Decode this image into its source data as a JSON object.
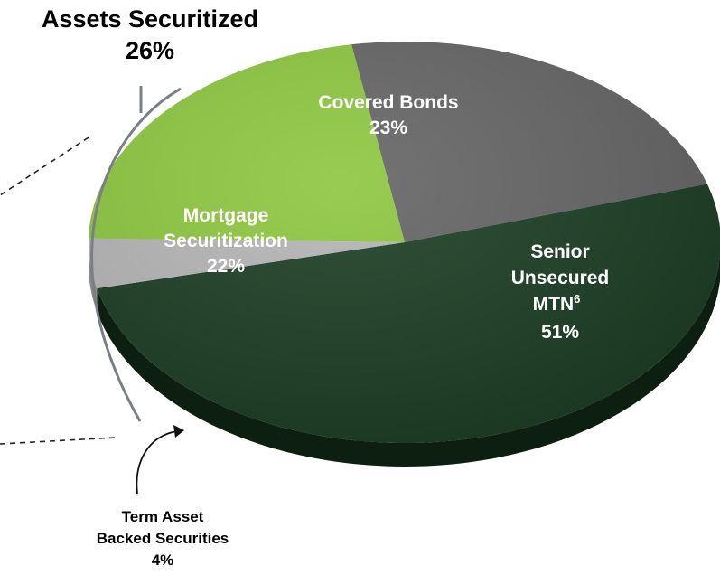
{
  "chart_data": {
    "type": "pie",
    "categories": [
      "Covered Bonds",
      "Senior Unsecured MTN6",
      "Term Asset Backed Securities",
      "Mortgage Securitization"
    ],
    "values": [
      23,
      51,
      4,
      22
    ],
    "unit": "%",
    "slices": [
      {
        "name_lines": [
          "Covered Bonds"
        ],
        "value_label": "23%",
        "value": 23,
        "color": "#646464",
        "side_color": "#3c3c3c"
      },
      {
        "name_lines": [
          "Senior",
          "Unsecured"
        ],
        "mtn_text": "MTN",
        "mtn_sup": "6",
        "value_label": "51%",
        "value": 51,
        "color": "#1b3d23",
        "side_color": "#0c1f10"
      },
      {
        "name_lines": [
          "Term Asset",
          "Backed Securities"
        ],
        "value_label": "4%",
        "value": 4,
        "color": "#b5b5b5",
        "side_color": "#8a8a8a"
      },
      {
        "name_lines": [
          "Mortgage",
          "Securitization"
        ],
        "value_label": "22%",
        "value": 22,
        "color": "#8cc63f",
        "side_color": "#5f8f2a"
      }
    ],
    "group_annotation": {
      "title": "Assets Securitized",
      "value_label": "26%",
      "value": 26
    }
  }
}
